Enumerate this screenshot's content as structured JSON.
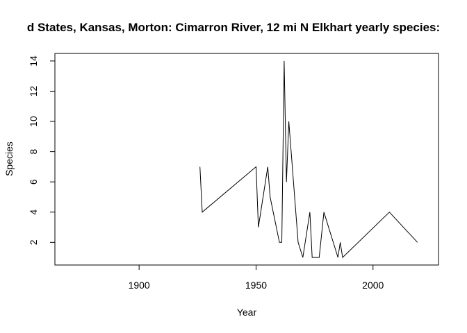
{
  "chart_data": {
    "type": "line",
    "title": "d States, Kansas, Morton: Cimarron River, 12 mi N Elkhart yearly species:",
    "xlabel": "Year",
    "ylabel": "Species",
    "xlim": [
      1864,
      2028
    ],
    "ylim": [
      0.5,
      14.5
    ],
    "x_ticks": [
      1900,
      1950,
      2000
    ],
    "y_ticks": [
      2,
      4,
      6,
      8,
      10,
      12,
      14
    ],
    "grid": false,
    "line_color": "#000000",
    "x": [
      1926,
      1927,
      1950,
      1951,
      1955,
      1956,
      1960,
      1961,
      1962,
      1963,
      1964,
      1968,
      1970,
      1973,
      1974,
      1977,
      1979,
      1985,
      1986,
      1987,
      2007,
      2019
    ],
    "y": [
      7,
      4,
      7,
      3,
      7,
      5,
      2,
      2,
      14,
      6,
      10,
      2,
      1,
      4,
      1,
      1,
      4,
      1,
      2,
      1,
      4,
      2
    ]
  }
}
